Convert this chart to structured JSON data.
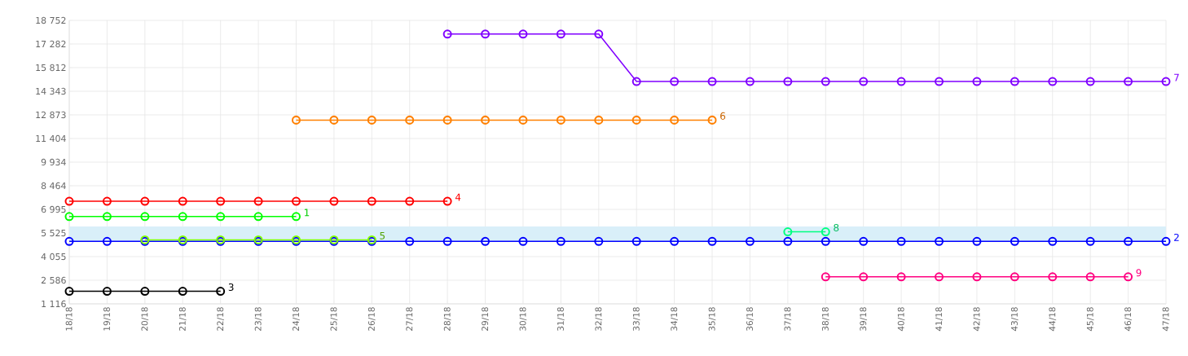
{
  "chart_data": {
    "type": "line",
    "categories": [
      "18/18",
      "19/18",
      "20/18",
      "21/18",
      "22/18",
      "23/18",
      "24/18",
      "25/18",
      "26/18",
      "27/18",
      "28/18",
      "29/18",
      "30/18",
      "31/18",
      "32/18",
      "33/18",
      "34/18",
      "35/18",
      "36/18",
      "37/18",
      "38/18",
      "39/18",
      "40/18",
      "41/18",
      "42/18",
      "43/18",
      "44/18",
      "45/18",
      "46/18",
      "47/18"
    ],
    "ylim": [
      1116,
      18752
    ],
    "yticks": [
      {
        "value": 1116,
        "label": "1 116"
      },
      {
        "value": 2586,
        "label": "2 586"
      },
      {
        "value": 4055,
        "label": "4 055"
      },
      {
        "value": 5525,
        "label": "5 525"
      },
      {
        "value": 6995,
        "label": "6 995"
      },
      {
        "value": 8464,
        "label": "8 464"
      },
      {
        "value": 9934,
        "label": "9 934"
      },
      {
        "value": 11404,
        "label": "11 404"
      },
      {
        "value": 12873,
        "label": "12 873"
      },
      {
        "value": 14343,
        "label": "14 343"
      },
      {
        "value": 15812,
        "label": "15 812"
      },
      {
        "value": 17282,
        "label": "17 282"
      },
      {
        "value": 18752,
        "label": "18 752"
      }
    ],
    "grid": true,
    "legend": false,
    "marker": "circle",
    "line_style": "solid",
    "bands": [
      {
        "axis": "y",
        "from": 5000,
        "to": 5930,
        "color": "#d9eff9"
      }
    ],
    "series": [
      {
        "name": "1",
        "color": "#00ff00",
        "values": [
          6550,
          6550,
          6550,
          6550,
          6550,
          6550,
          6550,
          null,
          null,
          null,
          null,
          null,
          null,
          null,
          null,
          null,
          null,
          null,
          null,
          null,
          null,
          null,
          null,
          null,
          null,
          null,
          null,
          null,
          null,
          null
        ]
      },
      {
        "name": "2",
        "color": "#0000ff",
        "values": [
          5000,
          5000,
          5000,
          5000,
          5000,
          5000,
          5000,
          5000,
          5000,
          5000,
          5000,
          5000,
          5000,
          5000,
          5000,
          5000,
          5000,
          5000,
          5000,
          5000,
          5000,
          5000,
          5000,
          5000,
          5000,
          5000,
          5000,
          5000,
          5000,
          5000
        ]
      },
      {
        "name": "3",
        "color": "#000000",
        "values": [
          1900,
          1900,
          1900,
          1900,
          1900,
          null,
          null,
          null,
          null,
          null,
          null,
          null,
          null,
          null,
          null,
          null,
          null,
          null,
          null,
          null,
          null,
          null,
          null,
          null,
          null,
          null,
          null,
          null,
          null,
          null
        ]
      },
      {
        "name": "4",
        "color": "#ff0000",
        "values": [
          7500,
          7500,
          7500,
          7500,
          7500,
          7500,
          7500,
          7500,
          7500,
          7500,
          7500,
          null,
          null,
          null,
          null,
          null,
          null,
          null,
          null,
          null,
          null,
          null,
          null,
          null,
          null,
          null,
          null,
          null,
          null,
          null
        ]
      },
      {
        "name": "5",
        "color": "#80ff00",
        "values": [
          null,
          null,
          5100,
          5100,
          5100,
          5100,
          5100,
          5100,
          5100,
          null,
          null,
          null,
          null,
          null,
          null,
          null,
          null,
          null,
          null,
          null,
          null,
          null,
          null,
          null,
          null,
          null,
          null,
          null,
          null,
          null
        ]
      },
      {
        "name": "6",
        "color": "#ff8000",
        "values": [
          null,
          null,
          null,
          null,
          null,
          null,
          12550,
          12550,
          12550,
          12550,
          12550,
          12550,
          12550,
          12550,
          12550,
          12550,
          12550,
          12550,
          null,
          null,
          null,
          null,
          null,
          null,
          null,
          null,
          null,
          null,
          null,
          null
        ]
      },
      {
        "name": "7",
        "color": "#8000ff",
        "values": [
          null,
          null,
          null,
          null,
          null,
          null,
          null,
          null,
          null,
          null,
          17900,
          17900,
          17900,
          17900,
          17900,
          14950,
          14950,
          14950,
          14950,
          14950,
          14950,
          14950,
          14950,
          14950,
          14950,
          14950,
          14950,
          14950,
          14950,
          14950
        ]
      },
      {
        "name": "8",
        "color": "#00ff80",
        "values": [
          null,
          null,
          null,
          null,
          null,
          null,
          null,
          null,
          null,
          null,
          null,
          null,
          null,
          null,
          null,
          null,
          null,
          null,
          null,
          5600,
          5600,
          null,
          null,
          null,
          null,
          null,
          null,
          null,
          null,
          null
        ]
      },
      {
        "name": "9",
        "color": "#ff0080",
        "values": [
          null,
          null,
          null,
          null,
          null,
          null,
          null,
          null,
          null,
          null,
          null,
          null,
          null,
          null,
          null,
          null,
          null,
          null,
          null,
          null,
          2800,
          2800,
          2800,
          2800,
          2800,
          2800,
          2800,
          2800,
          2800,
          null
        ]
      }
    ]
  }
}
